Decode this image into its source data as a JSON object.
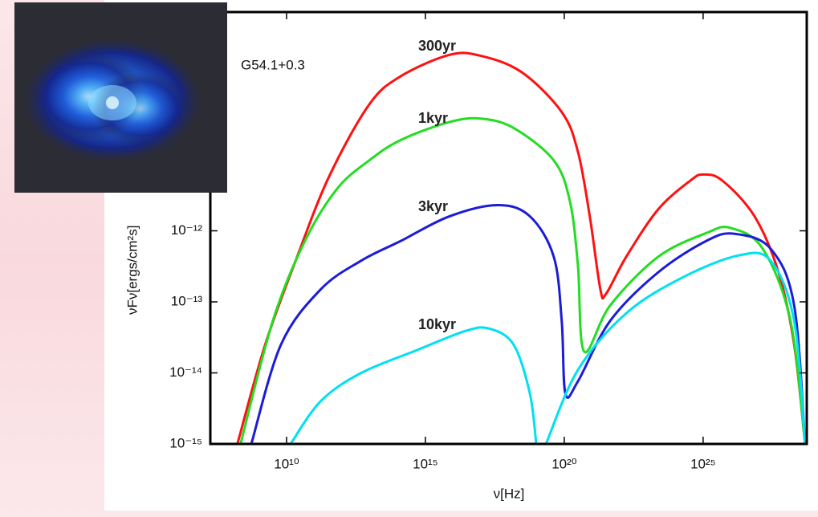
{
  "chart_data": {
    "type": "line",
    "annotation": "G54.1+0.3",
    "x_label": "ν[Hz]",
    "y_label": "νFν[ergs/cm²s]",
    "log_x": true,
    "log_y": true,
    "xlim": [
      18000000.0,
      5.4e+28
    ],
    "ylim": [
      1e-15,
      1.2e-09
    ],
    "xticks": [
      {
        "value": 10000000000.0,
        "label": "10¹⁰"
      },
      {
        "value": 1000000000000000.0,
        "label": "10¹⁵"
      },
      {
        "value": 1e+20,
        "label": "10²⁰"
      },
      {
        "value": 1e+25,
        "label": "10²⁵"
      }
    ],
    "yticks": [
      {
        "value": 1e-15,
        "label": "10⁻¹⁵"
      },
      {
        "value": 1e-14,
        "label": "10⁻¹⁴"
      },
      {
        "value": 1e-13,
        "label": "10⁻¹³"
      },
      {
        "value": 1e-12,
        "label": "10⁻¹²"
      }
    ],
    "series": [
      {
        "name": "300yr",
        "color": "#ff1010",
        "x": [
          170000000.0,
          1700000000.0,
          24000000000.0,
          340000000000.0,
          9500000000000.0,
          130000000000000.0,
          7400000000000000.0,
          1e+17,
          3e+18,
          8.1e+19,
          3.1e+20,
          8.3e+20,
          2e+21,
          3.2e+21,
          1.7e+22,
          2.4e+23,
          3.5e+24,
          1e+25,
          4.9e+25,
          7.1e+26,
          5.2e+27,
          1.9e+28,
          4.7e+28
        ],
        "values": [
          1e-15,
          2.5e-14,
          4.3e-13,
          5.8e-12,
          6e-11,
          1.5e-10,
          3e-10,
          2.9e-10,
          1.7e-10,
          4.7e-11,
          1.3e-11,
          1.6e-12,
          1.5e-13,
          1.3e-13,
          4.3e-13,
          2e-12,
          5.1e-12,
          6.2e-12,
          5.1e-12,
          1.6e-12,
          2.6e-13,
          2.5e-14,
          1e-15
        ]
      },
      {
        "name": "1kyr",
        "color": "#22dd22",
        "x": [
          220000000.0,
          3200000000.0,
          46000000000.0,
          660000000000.0,
          9500000000000.0,
          130000000000000.0,
          7400000000000000.0,
          1e+17,
          1.5e+18,
          4.2e+19,
          1.6e+20,
          3.1e+20,
          5.2e+20,
          4.5e+21,
          2.4e+23,
          1.3e+25,
          9.5e+25,
          1.4e+27,
          1.4e+28,
          4.7e+28
        ],
        "values": [
          1e-15,
          5.4e-14,
          7.2e-13,
          3.9e-12,
          9.8e-12,
          1.9e-11,
          3.4e-11,
          3.8e-11,
          2.8e-11,
          9.8e-12,
          2.6e-12,
          3.3e-13,
          2e-14,
          8.9e-14,
          4.3e-13,
          9.3e-13,
          1.1e-12,
          5.6e-13,
          5.4e-14,
          1e-15
        ]
      },
      {
        "name": "3kyr",
        "color": "#1c1cd8",
        "x": [
          540000000.0,
          6300000000.0,
          170000000000.0,
          4900000000000.0,
          130000000000000.0,
          7400000000000000.0,
          4e+17,
          5.8e+18,
          4.2e+19,
          8.1e+19,
          1.1e+20,
          3.1e+20,
          4.5e+21,
          2.4e+23,
          1.3e+25,
          1.3e+26,
          2.7e+27,
          1.9e+28,
          4.7e+28
        ],
        "values": [
          1e-15,
          2.5e-14,
          1.5e-13,
          3.8e-13,
          7.2e-13,
          1.6e-12,
          2.3e-12,
          1.6e-12,
          4.3e-13,
          5.4e-14,
          5.1e-15,
          7.6e-15,
          5.4e-14,
          2.6e-13,
          7.2e-13,
          9.1e-13,
          5.6e-13,
          8.9e-14,
          1e-15
        ]
      },
      {
        "name": "10kyr",
        "color": "#00e0f0",
        "x": [
          14000000000.0,
          170000000000.0,
          4900000000000.0,
          510000000000000.0,
          2.8e+16,
          2e+17,
          1.5e+18,
          5.8e+18,
          9.8e+18,
          1.5e+19,
          2.2e+19,
          3.1e+20,
          1.7e+22,
          1.8e+24,
          1.9e+26,
          2.7e+27,
          1.9e+28,
          4.7e+28
        ],
        "values": [
          1e-15,
          4e-15,
          1e-14,
          2.1e-14,
          3.9e-14,
          4.2e-14,
          2.5e-14,
          5.1e-15,
          1e-15,
          null,
          1e-15,
          1.1e-14,
          6.9e-14,
          2.2e-13,
          4.5e-13,
          3.8e-13,
          5.4e-14,
          1e-15
        ]
      }
    ]
  }
}
